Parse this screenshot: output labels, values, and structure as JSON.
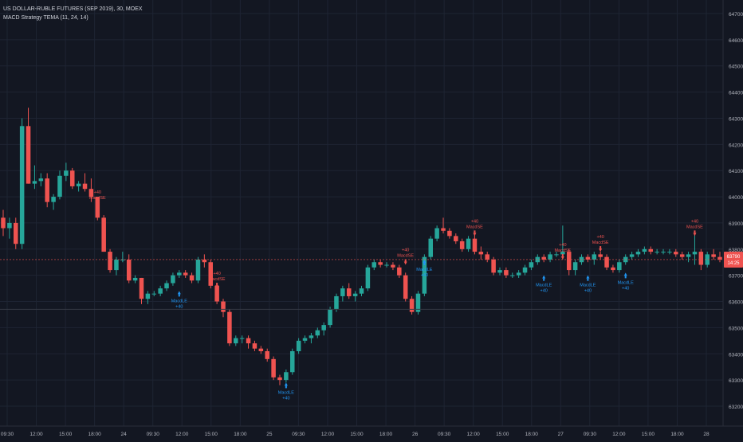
{
  "legend": {
    "symbol": "US DOLLAR-RUBLE FUTURES (SEP 2019), 30, MOEX",
    "indicator": "MACD Strategy TEMA (11, 24, 14)"
  },
  "colors": {
    "background": "#131722",
    "grid": "#1e2433",
    "up": "#26a69a",
    "down": "#ef5350",
    "text": "#b2b5be",
    "long_signal": "#2196f3",
    "short_signal": "#ef5350",
    "price_label_bg": "#ef5350"
  },
  "price_scale": {
    "ticks": [
      6200,
      6300,
      6400,
      6500,
      6600,
      6700,
      6800,
      6900,
      7000,
      7100,
      7200,
      7300,
      7400,
      7500,
      7600,
      7700
    ],
    "tick_labels": [
      "64700",
      "64600",
      "64500",
      "64400",
      "64300",
      "64200",
      "64100",
      "64000",
      "63900",
      "63800",
      "63700",
      "63600",
      "63500",
      "63400",
      "63300",
      "63200"
    ],
    "current_price_label": [
      "63790",
      "14:25"
    ]
  },
  "time_scale": {
    "labels": [
      "09:30",
      "12:00",
      "15:00",
      "18:00",
      "24",
      "09:30",
      "12:00",
      "15:00",
      "18:00",
      "25",
      "09:30",
      "12:00",
      "15:00",
      "18:00",
      "26",
      "09:30",
      "12:00",
      "15:00",
      "18:00",
      "27",
      "09:30",
      "12:00",
      "15:00",
      "18:00",
      "28"
    ]
  },
  "chart_data": {
    "type": "candlestick",
    "note_units": "price",
    "candles": [
      [
        63920,
        63950,
        63850,
        63880
      ],
      [
        63880,
        63920,
        63840,
        63900
      ],
      [
        63900,
        63920,
        63800,
        63820
      ],
      [
        63820,
        64300,
        63800,
        64270
      ],
      [
        64270,
        64340,
        64050,
        64050
      ],
      [
        64050,
        64120,
        64030,
        64060
      ],
      [
        64060,
        64090,
        64040,
        64070
      ],
      [
        64070,
        64090,
        63960,
        63980
      ],
      [
        63980,
        64010,
        63950,
        64000
      ],
      [
        64000,
        64100,
        63990,
        64080
      ],
      [
        64080,
        64130,
        64060,
        64100
      ],
      [
        64100,
        64110,
        64030,
        64040
      ],
      [
        64040,
        64060,
        64020,
        64050
      ],
      [
        64050,
        64090,
        64020,
        64030
      ],
      [
        64030,
        64070,
        63980,
        64000
      ],
      [
        64000,
        63990,
        63910,
        63920
      ],
      [
        63920,
        63930,
        63790,
        63790
      ],
      [
        63790,
        63800,
        63710,
        63720
      ],
      [
        63720,
        63770,
        63700,
        63760
      ],
      [
        63760,
        63790,
        63750,
        63760
      ],
      [
        63760,
        63780,
        63670,
        63680
      ],
      [
        63680,
        63700,
        63670,
        63690
      ],
      [
        63690,
        63690,
        63590,
        63610
      ],
      [
        63610,
        63640,
        63590,
        63630
      ],
      [
        63630,
        63640,
        63620,
        63630
      ],
      [
        63630,
        63660,
        63620,
        63650
      ],
      [
        63650,
        63680,
        63640,
        63670
      ],
      [
        63670,
        63710,
        63660,
        63700
      ],
      [
        63700,
        63720,
        63690,
        63710
      ],
      [
        63710,
        63720,
        63690,
        63700
      ],
      [
        63700,
        63710,
        63670,
        63680
      ],
      [
        63680,
        63770,
        63670,
        63760
      ],
      [
        63760,
        63780,
        63730,
        63750
      ],
      [
        63750,
        63760,
        63650,
        63660
      ],
      [
        63660,
        63670,
        63590,
        63600
      ],
      [
        63600,
        63610,
        63540,
        63560
      ],
      [
        63560,
        63570,
        63430,
        63440
      ],
      [
        63440,
        63470,
        63430,
        63460
      ],
      [
        63460,
        63470,
        63440,
        63460
      ],
      [
        63460,
        63470,
        63420,
        63440
      ],
      [
        63440,
        63450,
        63410,
        63420
      ],
      [
        63420,
        63430,
        63400,
        63410
      ],
      [
        63410,
        63420,
        63370,
        63380
      ],
      [
        63380,
        63390,
        63300,
        63310
      ],
      [
        63310,
        63320,
        63280,
        63300
      ],
      [
        63300,
        63340,
        63290,
        63330
      ],
      [
        63330,
        63420,
        63320,
        63410
      ],
      [
        63410,
        63460,
        63400,
        63450
      ],
      [
        63450,
        63470,
        63440,
        63460
      ],
      [
        63460,
        63480,
        63440,
        63470
      ],
      [
        63470,
        63500,
        63460,
        63490
      ],
      [
        63490,
        63520,
        63470,
        63510
      ],
      [
        63510,
        63580,
        63500,
        63570
      ],
      [
        63570,
        63630,
        63560,
        63620
      ],
      [
        63620,
        63660,
        63600,
        63650
      ],
      [
        63650,
        63670,
        63610,
        63620
      ],
      [
        63620,
        63640,
        63600,
        63630
      ],
      [
        63630,
        63660,
        63620,
        63650
      ],
      [
        63650,
        63740,
        63640,
        63730
      ],
      [
        63730,
        63760,
        63720,
        63750
      ],
      [
        63750,
        63760,
        63730,
        63740
      ],
      [
        63740,
        63750,
        63730,
        63740
      ],
      [
        63740,
        63750,
        63720,
        63730
      ],
      [
        63730,
        63740,
        63690,
        63700
      ],
      [
        63700,
        63710,
        63600,
        63610
      ],
      [
        63610,
        63620,
        63550,
        63560
      ],
      [
        63560,
        63640,
        63550,
        63630
      ],
      [
        63630,
        63780,
        63620,
        63770
      ],
      [
        63770,
        63850,
        63760,
        63840
      ],
      [
        63840,
        63890,
        63830,
        63880
      ],
      [
        63880,
        63920,
        63860,
        63870
      ],
      [
        63870,
        63880,
        63840,
        63850
      ],
      [
        63850,
        63860,
        63820,
        63830
      ],
      [
        63830,
        63840,
        63790,
        63800
      ],
      [
        63800,
        63850,
        63790,
        63840
      ],
      [
        63840,
        63860,
        63780,
        63790
      ],
      [
        63790,
        63810,
        63760,
        63780
      ],
      [
        63780,
        63790,
        63750,
        63760
      ],
      [
        63760,
        63770,
        63700,
        63710
      ],
      [
        63710,
        63730,
        63700,
        63720
      ],
      [
        63720,
        63730,
        63690,
        63700
      ],
      [
        63700,
        63710,
        63690,
        63700
      ],
      [
        63700,
        63720,
        63690,
        63710
      ],
      [
        63710,
        63740,
        63700,
        63730
      ],
      [
        63730,
        63760,
        63720,
        63750
      ],
      [
        63750,
        63780,
        63740,
        63770
      ],
      [
        63770,
        63780,
        63750,
        63760
      ],
      [
        63760,
        63790,
        63750,
        63780
      ],
      [
        63780,
        63790,
        63770,
        63780
      ],
      [
        63780,
        63890,
        63760,
        63790
      ],
      [
        63790,
        63800,
        63700,
        63720
      ],
      [
        63720,
        63760,
        63700,
        63750
      ],
      [
        63750,
        63780,
        63740,
        63770
      ],
      [
        63770,
        63780,
        63750,
        63760
      ],
      [
        63760,
        63790,
        63740,
        63780
      ],
      [
        63780,
        63790,
        63760,
        63770
      ],
      [
        63770,
        63780,
        63720,
        63730
      ],
      [
        63730,
        63740,
        63710,
        63720
      ],
      [
        63720,
        63760,
        63710,
        63750
      ],
      [
        63750,
        63780,
        63740,
        63770
      ],
      [
        63770,
        63790,
        63760,
        63780
      ],
      [
        63780,
        63800,
        63770,
        63790
      ],
      [
        63790,
        63810,
        63780,
        63800
      ],
      [
        63800,
        63810,
        63780,
        63790
      ],
      [
        63790,
        63800,
        63780,
        63790
      ],
      [
        63790,
        63800,
        63780,
        63790
      ],
      [
        63790,
        63800,
        63780,
        63790
      ],
      [
        63790,
        63800,
        63770,
        63780
      ],
      [
        63780,
        63790,
        63760,
        63770
      ],
      [
        63770,
        63790,
        63750,
        63780
      ],
      [
        63780,
        63860,
        63740,
        63790
      ],
      [
        63790,
        63800,
        63720,
        63740
      ],
      [
        63740,
        63790,
        63730,
        63780
      ],
      [
        63780,
        63800,
        63760,
        63770
      ],
      [
        63770,
        63790,
        63750,
        63760
      ]
    ],
    "signals": [
      {
        "type": "short",
        "bar": 15,
        "price": 63960,
        "label": "MacdSE",
        "qty": "+40"
      },
      {
        "type": "long",
        "bar": 28,
        "price": 63640,
        "label": "MacdLE",
        "qty": "+40"
      },
      {
        "type": "short",
        "bar": 34,
        "price": 63650,
        "label": "MacdSE",
        "qty": "+40"
      },
      {
        "type": "long",
        "bar": 45,
        "price": 63290,
        "label": "MacdLE",
        "qty": "+40"
      },
      {
        "type": "short",
        "bar": 64,
        "price": 63740,
        "label": "MacdSE",
        "qty": "+40"
      },
      {
        "type": "long",
        "bar": 67,
        "price": 63760,
        "label": "MacdLE",
        "qty": "+40"
      },
      {
        "type": "short",
        "bar": 75,
        "price": 63850,
        "label": "MacdSE",
        "qty": "+40"
      },
      {
        "type": "long",
        "bar": 86,
        "price": 63700,
        "label": "MacdLE",
        "qty": "+40"
      },
      {
        "type": "short",
        "bar": 89,
        "price": 63760,
        "label": "MacdSE",
        "qty": "+40"
      },
      {
        "type": "long",
        "bar": 93,
        "price": 63700,
        "label": "MacdLE",
        "qty": "+40"
      },
      {
        "type": "short",
        "bar": 95,
        "price": 63790,
        "label": "MacdSE",
        "qty": "+40"
      },
      {
        "type": "long",
        "bar": 99,
        "price": 63710,
        "label": "MacdLE",
        "qty": "+40"
      },
      {
        "type": "short",
        "bar": 110,
        "price": 63850,
        "label": "MacdSE",
        "qty": "+40"
      }
    ]
  }
}
